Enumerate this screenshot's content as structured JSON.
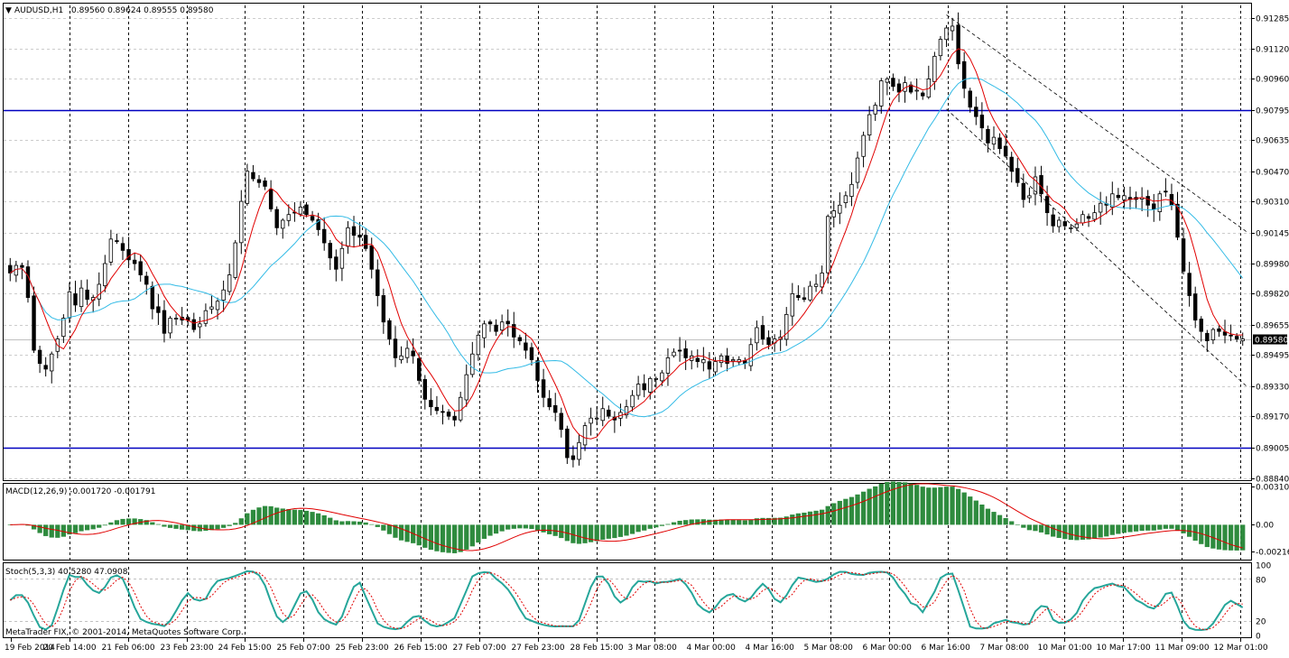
{
  "header": {
    "menu_glyph": "▼",
    "symbol_title": "AUDUSD,H1",
    "ohlc_text": "0.89560 0.89624 0.89555 0.89580"
  },
  "copyright": "MetaTrader FIX, © 2001-2014, MetaQuotes Software Corp.",
  "colors": {
    "candle": "#000000",
    "ma_fast": "#e00000",
    "ma_slow": "#33bbe6",
    "hline": "#0000c0",
    "macd_hist": "#2e8b3e",
    "macd_signal": "#e00000",
    "stoch_main": "#26a69a",
    "stoch_signal": "#e00000",
    "grid": "#9a9a9a",
    "price_label_bg": "#000000",
    "price_label_fg": "#ffffff"
  },
  "chart_data": [
    {
      "type": "candlestick",
      "pane": "main",
      "title": "AUDUSD,H1",
      "ylim": [
        0.8884,
        0.9135
      ],
      "y_ticks": [
        "0.91285",
        "0.91120",
        "0.90960",
        "0.90795",
        "0.90635",
        "0.90470",
        "0.90310",
        "0.90145",
        "0.89980",
        "0.89820",
        "0.89655",
        "0.89495",
        "0.89330",
        "0.89170",
        "0.89005",
        "0.88840"
      ],
      "x_ticks": [
        "19 Feb 2014",
        "20 Feb 14:00",
        "21 Feb 06:00",
        "23 Feb 23:00",
        "24 Feb 15:00",
        "25 Feb 07:00",
        "25 Feb 23:00",
        "26 Feb 15:00",
        "27 Feb 07:00",
        "27 Feb 23:00",
        "28 Feb 15:00",
        "3 Mar 08:00",
        "4 Mar 00:00",
        "4 Mar 16:00",
        "5 Mar 08:00",
        "6 Mar 00:00",
        "6 Mar 16:00",
        "7 Mar 08:00",
        "10 Mar 01:00",
        "10 Mar 17:00",
        "11 Mar 09:00",
        "12 Mar 01:00"
      ],
      "current_price": "0.89580",
      "horizontal_levels": [
        0.90795,
        0.89005
      ],
      "channel": {
        "upper": [
          [
            0.913,
            0.9015
          ]
        ],
        "lower": [
          [
            0.908,
            0.8933
          ]
        ]
      },
      "series": [
        {
          "name": "Close",
          "values": [
            0.8993,
            0.8997,
            0.8996,
            0.898,
            0.8952,
            0.8945,
            0.8942,
            0.895,
            0.8958,
            0.8969,
            0.8983,
            0.8976,
            0.8985,
            0.8979,
            0.898,
            0.8987,
            0.8998,
            0.9011,
            0.901,
            0.9005,
            0.9,
            0.8998,
            0.8992,
            0.8987,
            0.8974,
            0.8972,
            0.8961,
            0.8969,
            0.8969,
            0.8968,
            0.8968,
            0.8963,
            0.8966,
            0.8973,
            0.8975,
            0.8978,
            0.8984,
            0.8992,
            0.9009,
            0.9031,
            0.9047,
            0.9043,
            0.9041,
            0.9039,
            0.9027,
            0.9017,
            0.9021,
            0.9024,
            0.9025,
            0.9028,
            0.9024,
            0.9021,
            0.9016,
            0.9009,
            0.9001,
            0.8995,
            0.9006,
            0.9017,
            0.9013,
            0.9012,
            0.9006,
            0.8995,
            0.8981,
            0.8967,
            0.8958,
            0.8948,
            0.8949,
            0.8953,
            0.8949,
            0.8936,
            0.8926,
            0.8922,
            0.892,
            0.8919,
            0.8917,
            0.8915,
            0.8927,
            0.8939,
            0.895,
            0.896,
            0.8966,
            0.8966,
            0.8962,
            0.8967,
            0.8966,
            0.8959,
            0.8957,
            0.8952,
            0.8947,
            0.8936,
            0.8927,
            0.8922,
            0.8919,
            0.891,
            0.8895,
            0.8894,
            0.8903,
            0.8912,
            0.8916,
            0.8916,
            0.8921,
            0.8917,
            0.8915,
            0.8919,
            0.8922,
            0.8928,
            0.8934,
            0.8931,
            0.8937,
            0.8937,
            0.894,
            0.8948,
            0.8951,
            0.8952,
            0.8948,
            0.8949,
            0.8946,
            0.8947,
            0.8942,
            0.8946,
            0.8949,
            0.8945,
            0.8947,
            0.8947,
            0.8945,
            0.8955,
            0.8964,
            0.8958,
            0.8955,
            0.8958,
            0.8959,
            0.8971,
            0.8982,
            0.898,
            0.8979,
            0.8986,
            0.8987,
            0.8993,
            0.9023,
            0.9026,
            0.9029,
            0.9034,
            0.904,
            0.9054,
            0.9066,
            0.9077,
            0.9082,
            0.9095,
            0.9096,
            0.9092,
            0.9089,
            0.9094,
            0.9089,
            0.909,
            0.9087,
            0.9096,
            0.9108,
            0.9117,
            0.9123,
            0.9124,
            0.9104,
            0.9091,
            0.9081,
            0.9076,
            0.907,
            0.9062,
            0.9065,
            0.9059,
            0.9055,
            0.9047,
            0.9041,
            0.9032,
            0.9034,
            0.9044,
            0.9035,
            0.9025,
            0.9018,
            0.9021,
            0.9018,
            0.9017,
            0.9019,
            0.9024,
            0.9022,
            0.9025,
            0.903,
            0.9029,
            0.9035,
            0.9033,
            0.9034,
            0.9032,
            0.9032,
            0.9033,
            0.9029,
            0.9027,
            0.9035,
            0.9036,
            0.9029,
            0.9012,
            0.8994,
            0.8981,
            0.8968,
            0.8962,
            0.8957,
            0.8963,
            0.8962,
            0.896,
            0.896,
            0.8958,
            0.8958
          ]
        }
      ],
      "moving_averages": [
        {
          "name": "MA fast",
          "color_key": "ma_fast"
        },
        {
          "name": "MA slow",
          "color_key": "ma_slow"
        }
      ]
    },
    {
      "type": "histogram",
      "pane": "macd",
      "title": "MACD(12,26,9) -0.001720 -0.001791",
      "ylim": [
        -0.0027,
        0.0032
      ],
      "y_ticks": [
        "0.003102",
        "0.00",
        "-0.002167"
      ]
    },
    {
      "type": "line",
      "pane": "stoch",
      "title": "Stoch(5,3,3) 40.5280 47.0908",
      "ylim": [
        0,
        100
      ],
      "y_ticks": [
        "100",
        "80",
        "20",
        "0"
      ]
    }
  ]
}
